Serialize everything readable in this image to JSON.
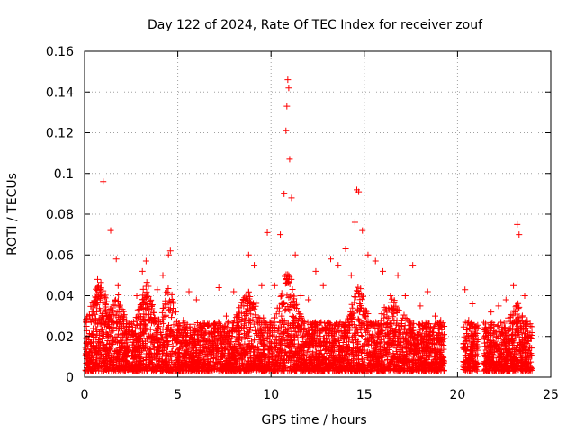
{
  "chart_data": {
    "type": "scatter",
    "title": "Day 122 of 2024, Rate Of TEC Index for receiver zouf",
    "xlabel": "GPS time / hours",
    "ylabel": "ROTI / TECUs",
    "xlim": [
      0,
      25
    ],
    "ylim": [
      0,
      0.16
    ],
    "xticks": [
      0,
      5,
      10,
      15,
      20,
      25
    ],
    "xtick_labels": [
      "0",
      "5",
      "10",
      "15",
      "20",
      "25"
    ],
    "yticks": [
      0,
      0.02,
      0.04,
      0.06,
      0.08,
      0.1,
      0.12,
      0.14,
      0.16
    ],
    "ytick_labels": [
      "0",
      "0.02",
      "0.04",
      "0.06",
      "0.08",
      "0.1",
      "0.12",
      "0.14",
      "0.16"
    ],
    "grid": true,
    "marker": "+",
    "marker_color": "#ff0000",
    "data_gaps_hours": [
      [
        19.3,
        20.3
      ],
      [
        21.1,
        21.4
      ]
    ],
    "series": [
      {
        "name": "ROTI",
        "color": "#ff0000",
        "x": [
          0.1,
          0.3,
          0.5,
          0.7,
          0.9,
          1.0,
          1.2,
          1.4,
          1.7,
          1.8,
          2.1,
          2.4,
          2.8,
          3.1,
          3.3,
          3.6,
          3.9,
          4.2,
          4.5,
          4.6,
          4.9,
          5.3,
          5.6,
          6.0,
          6.4,
          6.8,
          7.2,
          7.6,
          8.0,
          8.4,
          8.8,
          9.1,
          9.5,
          9.8,
          10.2,
          10.5,
          10.7,
          10.8,
          10.85,
          10.9,
          10.95,
          11.0,
          11.1,
          11.3,
          11.6,
          12.0,
          12.4,
          12.8,
          13.2,
          13.6,
          14.0,
          14.3,
          14.5,
          14.6,
          14.7,
          14.9,
          15.2,
          15.6,
          16.0,
          16.4,
          16.8,
          17.2,
          17.6,
          18.0,
          18.4,
          18.8,
          19.1,
          20.4,
          20.6,
          20.8,
          21.0,
          21.5,
          21.8,
          22.2,
          22.6,
          23.0,
          23.2,
          23.3,
          23.6,
          23.9
        ],
        "y": [
          0.025,
          0.028,
          0.035,
          0.048,
          0.04,
          0.096,
          0.03,
          0.072,
          0.058,
          0.045,
          0.03,
          0.025,
          0.04,
          0.052,
          0.057,
          0.035,
          0.043,
          0.05,
          0.06,
          0.062,
          0.032,
          0.028,
          0.042,
          0.038,
          0.025,
          0.022,
          0.044,
          0.03,
          0.042,
          0.035,
          0.06,
          0.055,
          0.045,
          0.071,
          0.045,
          0.07,
          0.09,
          0.121,
          0.133,
          0.146,
          0.142,
          0.107,
          0.088,
          0.06,
          0.04,
          0.038,
          0.052,
          0.045,
          0.058,
          0.055,
          0.063,
          0.05,
          0.076,
          0.092,
          0.091,
          0.072,
          0.06,
          0.057,
          0.052,
          0.04,
          0.05,
          0.04,
          0.055,
          0.035,
          0.042,
          0.03,
          0.028,
          0.043,
          0.028,
          0.036,
          0.025,
          0.02,
          0.032,
          0.035,
          0.038,
          0.045,
          0.075,
          0.07,
          0.04,
          0.025
        ]
      }
    ]
  }
}
